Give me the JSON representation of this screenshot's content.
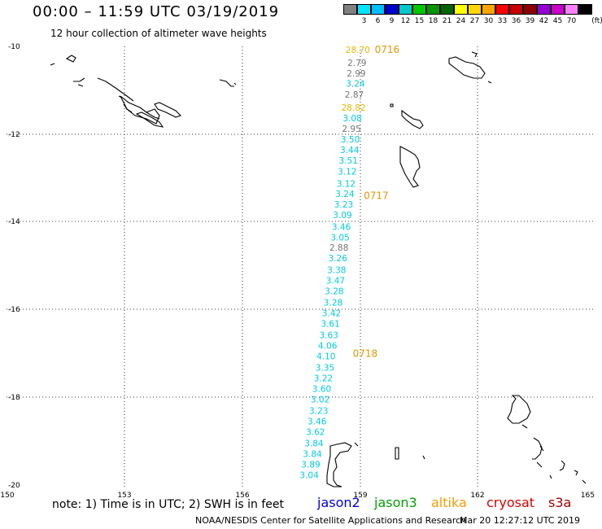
{
  "header": {
    "title": "00:00 – 11:59 UTC 03/19/2019",
    "subtitle": "12 hour collection of altimeter wave heights"
  },
  "scale": {
    "unit_label": "(ft)",
    "bins": [
      {
        "label": "",
        "color": "#808080"
      },
      {
        "label": "3",
        "color": "#00e5ff"
      },
      {
        "label": "6",
        "color": "#00bfff"
      },
      {
        "label": "9",
        "color": "#0000cd"
      },
      {
        "label": "12",
        "color": "#00c8c8"
      },
      {
        "label": "15",
        "color": "#00c800"
      },
      {
        "label": "18",
        "color": "#009600"
      },
      {
        "label": "21",
        "color": "#006400"
      },
      {
        "label": "24",
        "color": "#ffff00"
      },
      {
        "label": "27",
        "color": "#ffd700"
      },
      {
        "label": "30",
        "color": "#ffa500"
      },
      {
        "label": "33",
        "color": "#ff0000"
      },
      {
        "label": "36",
        "color": "#c80000"
      },
      {
        "label": "39",
        "color": "#8b0000"
      },
      {
        "label": "42",
        "color": "#9400d3"
      },
      {
        "label": "45",
        "color": "#c800c8"
      },
      {
        "label": "70",
        "color": "#ff80ff"
      },
      {
        "label": "",
        "color": "#000000"
      }
    ]
  },
  "footer": {
    "note": "note: 1) Time is in UTC; 2) SWH is in feet",
    "credit": "NOAA/NESDIS Center for Satellite Applications and Research",
    "timestamp": "Mar 20 12:27:12 UTC 2019"
  },
  "satellites": [
    {
      "name": "jason2",
      "color": "#0000dd"
    },
    {
      "name": "jason3",
      "color": "#00a000"
    },
    {
      "name": "altika",
      "color": "#ff9900"
    },
    {
      "name": "cryosat",
      "color": "#dd0000"
    },
    {
      "name": "s3a",
      "color": "#a00000"
    }
  ],
  "chart_data": {
    "type": "scatter",
    "xlabel": "",
    "ylabel": "",
    "xlim": [
      150,
      165
    ],
    "ylim": [
      -20,
      -10
    ],
    "x_ticks": [
      "150",
      "153",
      "156",
      "159",
      "162",
      "165"
    ],
    "y_ticks": [
      "-10",
      "-12",
      "-14",
      "-16",
      "-18",
      "-20"
    ],
    "grid": true,
    "colors": {
      "gray": "#777777",
      "cyan": "#00ccdd",
      "gold": "#e6b800",
      "orange": "#e69600"
    },
    "wave_heights": [
      {
        "lon": 158.95,
        "lat": -10.07,
        "value": "28.70",
        "color": "gold"
      },
      {
        "lon": 158.93,
        "lat": -10.37,
        "value": "2.79",
        "color": "gray"
      },
      {
        "lon": 158.91,
        "lat": -10.61,
        "value": "2.99",
        "color": "gray"
      },
      {
        "lon": 158.89,
        "lat": -10.84,
        "value": "3.24",
        "color": "cyan"
      },
      {
        "lon": 158.86,
        "lat": -11.09,
        "value": "2.87",
        "color": "gray"
      },
      {
        "lon": 158.84,
        "lat": -11.39,
        "value": "28.82",
        "color": "gold"
      },
      {
        "lon": 158.81,
        "lat": -11.63,
        "value": "3.08",
        "color": "cyan"
      },
      {
        "lon": 158.79,
        "lat": -11.87,
        "value": "2.95",
        "color": "gray"
      },
      {
        "lon": 158.76,
        "lat": -12.11,
        "value": "3.50",
        "color": "cyan"
      },
      {
        "lon": 158.74,
        "lat": -12.35,
        "value": "3.44",
        "color": "cyan"
      },
      {
        "lon": 158.71,
        "lat": -12.59,
        "value": "3.51",
        "color": "cyan"
      },
      {
        "lon": 158.68,
        "lat": -12.84,
        "value": "3.12",
        "color": "cyan"
      },
      {
        "lon": 158.65,
        "lat": -13.11,
        "value": "3.12",
        "color": "cyan"
      },
      {
        "lon": 158.62,
        "lat": -13.35,
        "value": "3.24",
        "color": "cyan"
      },
      {
        "lon": 158.59,
        "lat": -13.59,
        "value": "3.23",
        "color": "cyan"
      },
      {
        "lon": 158.56,
        "lat": -13.83,
        "value": "3.09",
        "color": "cyan"
      },
      {
        "lon": 158.53,
        "lat": -14.09,
        "value": "3.46",
        "color": "cyan"
      },
      {
        "lon": 158.5,
        "lat": -14.33,
        "value": "3.05",
        "color": "cyan"
      },
      {
        "lon": 158.47,
        "lat": -14.57,
        "value": "2.88",
        "color": "gray"
      },
      {
        "lon": 158.44,
        "lat": -14.81,
        "value": "3.26",
        "color": "cyan"
      },
      {
        "lon": 158.41,
        "lat": -15.07,
        "value": "3.38",
        "color": "cyan"
      },
      {
        "lon": 158.38,
        "lat": -15.31,
        "value": "3.47",
        "color": "cyan"
      },
      {
        "lon": 158.35,
        "lat": -15.55,
        "value": "3.28",
        "color": "cyan"
      },
      {
        "lon": 158.32,
        "lat": -15.81,
        "value": "3.28",
        "color": "cyan"
      },
      {
        "lon": 158.28,
        "lat": -16.05,
        "value": "3.42",
        "color": "cyan"
      },
      {
        "lon": 158.25,
        "lat": -16.29,
        "value": "3.61",
        "color": "cyan"
      },
      {
        "lon": 158.21,
        "lat": -16.55,
        "value": "3.63",
        "color": "cyan"
      },
      {
        "lon": 158.18,
        "lat": -16.79,
        "value": "4.06",
        "color": "cyan"
      },
      {
        "lon": 158.14,
        "lat": -17.03,
        "value": "4.10",
        "color": "cyan"
      },
      {
        "lon": 158.11,
        "lat": -17.29,
        "value": "3.35",
        "color": "cyan"
      },
      {
        "lon": 158.07,
        "lat": -17.53,
        "value": "3.22",
        "color": "cyan"
      },
      {
        "lon": 158.03,
        "lat": -17.77,
        "value": "3.60",
        "color": "cyan"
      },
      {
        "lon": 157.99,
        "lat": -18.01,
        "value": "3.02",
        "color": "cyan"
      },
      {
        "lon": 157.95,
        "lat": -18.27,
        "value": "3.23",
        "color": "cyan"
      },
      {
        "lon": 157.91,
        "lat": -18.51,
        "value": "3.46",
        "color": "cyan"
      },
      {
        "lon": 157.87,
        "lat": -18.75,
        "value": "3.62",
        "color": "cyan"
      },
      {
        "lon": 157.83,
        "lat": -19.01,
        "value": "3.84",
        "color": "cyan"
      },
      {
        "lon": 157.79,
        "lat": -19.25,
        "value": "3.84",
        "color": "cyan"
      },
      {
        "lon": 157.75,
        "lat": -19.49,
        "value": "3.89",
        "color": "cyan"
      },
      {
        "lon": 157.71,
        "lat": -19.73,
        "value": "3.04",
        "color": "cyan"
      }
    ],
    "time_labels": [
      {
        "lon": 159.7,
        "lat": -10.07,
        "label": "0716"
      },
      {
        "lon": 159.42,
        "lat": -13.39,
        "label": "0717"
      },
      {
        "lon": 159.14,
        "lat": -16.98,
        "label": "0718"
      }
    ],
    "coastlines": "island outlines shown in black"
  }
}
